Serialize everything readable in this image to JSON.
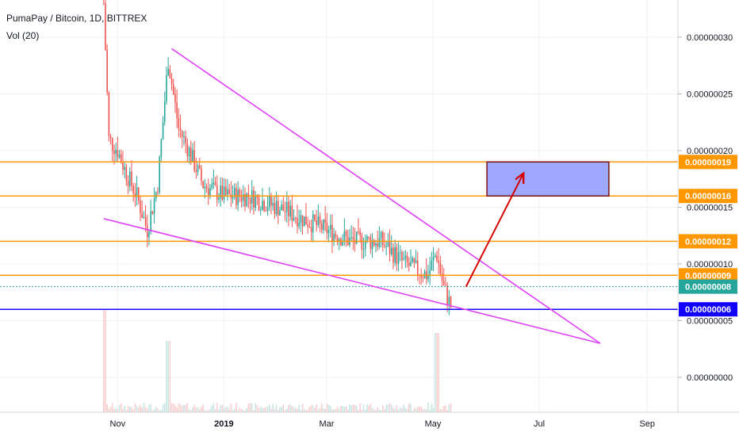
{
  "chart": {
    "symbol": "PumaPay / Bitcoin, 1D, BITTREX",
    "indicator": "Vol (20)"
  },
  "chart_data": {
    "type": "candlestick",
    "x_ticks": [
      "Nov",
      "2019",
      "Mar",
      "May",
      "Jul",
      "Sep"
    ],
    "y_ticks": [
      "0.00000000",
      "0.00000005",
      "0.00000010",
      "0.00000015",
      "0.00000020",
      "0.00000025",
      "0.00000030"
    ],
    "ylim": [
      0.0,
      3.4e-07
    ],
    "horizontal_levels": [
      {
        "label": "0.00000019",
        "value": 1.9e-07,
        "color": "#ff9800"
      },
      {
        "label": "0.00000016",
        "value": 1.6e-07,
        "color": "#ff9800"
      },
      {
        "label": "0.00000012",
        "value": 1.2e-07,
        "color": "#ff9800"
      },
      {
        "label": "0.00000009",
        "value": 9e-08,
        "color": "#ff9800"
      },
      {
        "label": "0.00000006",
        "value": 6e-08,
        "color": "#1200ff"
      }
    ],
    "last_price": {
      "label": "0.00000008",
      "value": 8e-08,
      "color": "#26a69a"
    },
    "price_path": [
      [
        "2018-10-24",
        3.3e-07
      ],
      [
        "2018-10-27",
        2.1e-07
      ],
      [
        "2018-11-01",
        2e-07
      ],
      [
        "2018-11-06",
        1.8e-07
      ],
      [
        "2018-11-12",
        1.6e-07
      ],
      [
        "2018-11-18",
        1.3e-07
      ],
      [
        "2018-11-24",
        1.7e-07
      ],
      [
        "2018-11-30",
        2.8e-07
      ],
      [
        "2018-12-06",
        2.2e-07
      ],
      [
        "2018-12-12",
        2e-07
      ],
      [
        "2018-12-20",
        1.7e-07
      ],
      [
        "2019-01-01",
        1.6e-07
      ],
      [
        "2019-01-15",
        1.6e-07
      ],
      [
        "2019-02-01",
        1.5e-07
      ],
      [
        "2019-02-15",
        1.4e-07
      ],
      [
        "2019-03-01",
        1.3e-07
      ],
      [
        "2019-03-15",
        1.2e-07
      ],
      [
        "2019-04-01",
        1.2e-07
      ],
      [
        "2019-04-15",
        1e-07
      ],
      [
        "2019-04-28",
        9e-08
      ],
      [
        "2019-05-03",
        1.1e-07
      ],
      [
        "2019-05-07",
        8e-08
      ],
      [
        "2019-05-12",
        6e-08
      ]
    ],
    "volume_spikes": [
      [
        "2018-10-24",
        0.9
      ],
      [
        "2018-11-30",
        0.5
      ],
      [
        "2019-05-03",
        0.6
      ]
    ],
    "drawings": [
      {
        "type": "wedge-upper",
        "from": [
          "2018-12-02",
          2.9e-07
        ],
        "to": [
          "2019-08-05",
          3e-08
        ],
        "color": "#e040fb"
      },
      {
        "type": "wedge-lower",
        "from": [
          "2018-10-24",
          1.4e-07
        ],
        "to": [
          "2019-08-05",
          3e-08
        ],
        "color": "#e040fb"
      },
      {
        "type": "target-box",
        "from": [
          "2019-06-01",
          1.9e-07
        ],
        "to": [
          "2019-08-10",
          1.6e-07
        ],
        "color": "#9fa8ff"
      },
      {
        "type": "arrow",
        "from": [
          "2019-05-20",
          8e-08
        ],
        "to": [
          "2019-06-22",
          1.8e-07
        ],
        "color": "#d50000"
      }
    ]
  },
  "colors": {
    "up": "#26a69a",
    "down": "#ef5350",
    "grid": "#eef0f3",
    "axis": "#131722",
    "wedge": "#e040fb",
    "box_fill": "#9fa8ff",
    "box_border": "#7b1212",
    "arrow": "#d50000",
    "last_price_dotted": "#26a69a"
  }
}
